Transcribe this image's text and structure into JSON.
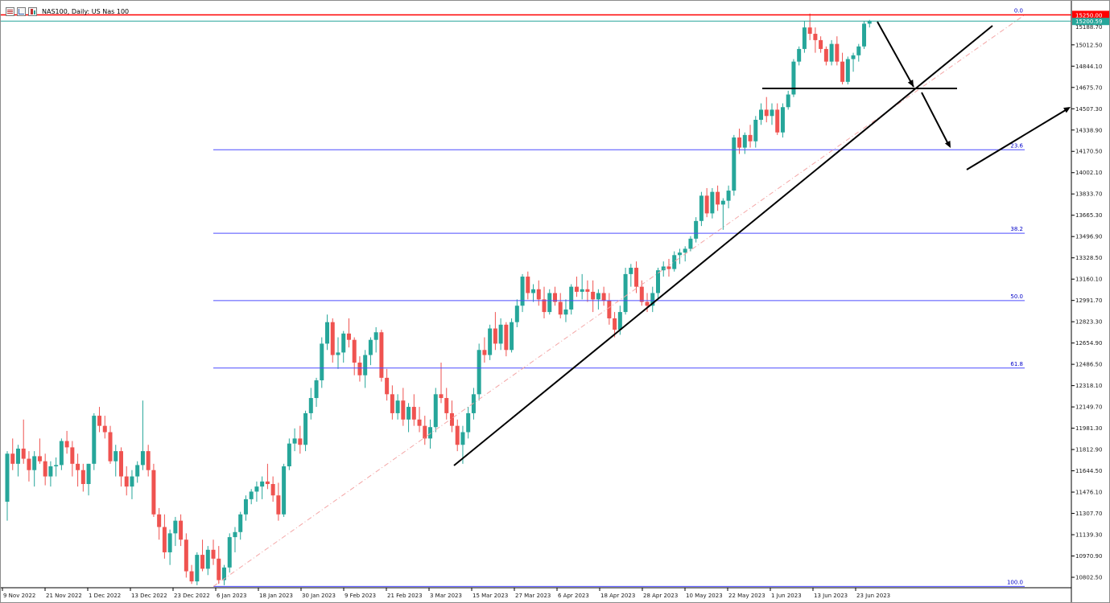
{
  "window": {
    "title": "NAS100, Daily:  US Nas 100",
    "icons": [
      "list-icon",
      "chart-icon",
      "candles-icon"
    ]
  },
  "colors": {
    "bull": "#26a69a",
    "bear": "#ef5350",
    "fib": "#4d4dff",
    "hline": "#ff0000",
    "ma": "#f4a6a6",
    "trendline": "#000000"
  },
  "chart_data": {
    "type": "candlestick",
    "symbol": "NAS100",
    "timeframe": "Daily",
    "description": "US Nas 100",
    "ylim": [
      10720,
      15310
    ],
    "y_ticks": [
      "15012.50",
      "14844.10",
      "14675.70",
      "14507.30",
      "14338.90",
      "14170.50",
      "14002.10",
      "13833.70",
      "13665.30",
      "13496.90",
      "13328.50",
      "13160.10",
      "12991.70",
      "12823.30",
      "12654.90",
      "12486.50",
      "12318.10",
      "12149.70",
      "11981.30",
      "11812.90",
      "11644.50",
      "11476.10",
      "11307.70",
      "11139.30",
      "10970.90",
      "10802.50"
    ],
    "x_ticks": [
      "9 Nov 2022",
      "21 Nov 2022",
      "1 Dec 2022",
      "13 Dec 2022",
      "23 Dec 2022",
      "6 Jan 2023",
      "18 Jan 2023",
      "30 Jan 2023",
      "9 Feb 2023",
      "21 Feb 2023",
      "3 Mar 2023",
      "15 Mar 2023",
      "27 Mar 2023",
      "6 Apr 2023",
      "18 Apr 2023",
      "28 Apr 2023",
      "10 May 2023",
      "22 May 2023",
      "1 Jun 2023",
      "13 Jun 2023",
      "23 Jun 2023"
    ],
    "horizontal_line": {
      "label": "15250.00",
      "value": 15250.0
    },
    "current_price": {
      "label": "15200.59",
      "value": 15200.59
    },
    "second_tag_label": "15188.70",
    "fibonacci": {
      "from": 10730,
      "to": 15250,
      "levels": [
        {
          "label": "0.0",
          "value": 15250
        },
        {
          "label": "23.6",
          "value": 14183
        },
        {
          "label": "38.2",
          "value": 13523
        },
        {
          "label": "50.0",
          "value": 12990
        },
        {
          "label": "61.8",
          "value": 12457
        },
        {
          "label": "100.0",
          "value": 10730
        }
      ]
    },
    "candles": [
      [
        11400,
        11800,
        11250,
        11780
      ],
      [
        11780,
        11900,
        11650,
        11700
      ],
      [
        11700,
        11850,
        11600,
        11820
      ],
      [
        11820,
        12050,
        11700,
        11740
      ],
      [
        11740,
        11800,
        11560,
        11650
      ],
      [
        11650,
        11800,
        11520,
        11760
      ],
      [
        11760,
        11900,
        11700,
        11720
      ],
      [
        11720,
        11780,
        11530,
        11600
      ],
      [
        11600,
        11720,
        11520,
        11680
      ],
      [
        11680,
        11750,
        11600,
        11690
      ],
      [
        11690,
        11900,
        11650,
        11880
      ],
      [
        11880,
        11960,
        11780,
        11830
      ],
      [
        11830,
        11880,
        11600,
        11700
      ],
      [
        11700,
        11780,
        11520,
        11650
      ],
      [
        11650,
        11700,
        11480,
        11540
      ],
      [
        11540,
        11700,
        11450,
        11700
      ],
      [
        11700,
        12100,
        11650,
        12080
      ],
      [
        12080,
        12150,
        11950,
        12000
      ],
      [
        12000,
        12080,
        11900,
        11950
      ],
      [
        11950,
        12000,
        11700,
        11720
      ],
      [
        11720,
        11850,
        11600,
        11800
      ],
      [
        11800,
        11830,
        11520,
        11600
      ],
      [
        11600,
        11680,
        11450,
        11520
      ],
      [
        11520,
        11650,
        11420,
        11600
      ],
      [
        11600,
        11720,
        11550,
        11690
      ],
      [
        11690,
        12200,
        11650,
        11800
      ],
      [
        11800,
        11850,
        11600,
        11650
      ],
      [
        11650,
        11700,
        11280,
        11300
      ],
      [
        11300,
        11350,
        11100,
        11200
      ],
      [
        11200,
        11300,
        10950,
        11000
      ],
      [
        11000,
        11180,
        10900,
        11150
      ],
      [
        11150,
        11280,
        11050,
        11250
      ],
      [
        11250,
        11300,
        11050,
        11100
      ],
      [
        11100,
        11150,
        10800,
        10850
      ],
      [
        10850,
        10900,
        10750,
        10770
      ],
      [
        10770,
        11000,
        10740,
        10980
      ],
      [
        10980,
        11100,
        10850,
        10870
      ],
      [
        10870,
        11050,
        10820,
        11020
      ],
      [
        11020,
        11100,
        10900,
        10950
      ],
      [
        10950,
        11050,
        10750,
        10780
      ],
      [
        10780,
        10900,
        10740,
        10880
      ],
      [
        10880,
        11150,
        10840,
        11120
      ],
      [
        11120,
        11200,
        11000,
        11160
      ],
      [
        11160,
        11320,
        11100,
        11300
      ],
      [
        11300,
        11450,
        11250,
        11420
      ],
      [
        11420,
        11500,
        11380,
        11480
      ],
      [
        11480,
        11560,
        11400,
        11520
      ],
      [
        11520,
        11600,
        11420,
        11560
      ],
      [
        11560,
        11700,
        11500,
        11540
      ],
      [
        11540,
        11600,
        11400,
        11450
      ],
      [
        11450,
        11550,
        11250,
        11300
      ],
      [
        11300,
        11700,
        11280,
        11680
      ],
      [
        11680,
        11900,
        11650,
        11860
      ],
      [
        11860,
        11980,
        11800,
        11900
      ],
      [
        11900,
        12000,
        11780,
        11850
      ],
      [
        11850,
        12120,
        11800,
        12100
      ],
      [
        12100,
        12300,
        12050,
        12220
      ],
      [
        12220,
        12380,
        12150,
        12360
      ],
      [
        12360,
        12700,
        12300,
        12650
      ],
      [
        12650,
        12880,
        12600,
        12820
      ],
      [
        12820,
        12850,
        12500,
        12560
      ],
      [
        12560,
        12700,
        12450,
        12580
      ],
      [
        12580,
        12750,
        12500,
        12730
      ],
      [
        12730,
        12850,
        12620,
        12680
      ],
      [
        12680,
        12700,
        12400,
        12500
      ],
      [
        12500,
        12550,
        12350,
        12400
      ],
      [
        12400,
        12600,
        12300,
        12560
      ],
      [
        12560,
        12700,
        12480,
        12680
      ],
      [
        12680,
        12780,
        12580,
        12740
      ],
      [
        12740,
        12760,
        12350,
        12380
      ],
      [
        12380,
        12450,
        12200,
        12250
      ],
      [
        12250,
        12320,
        12050,
        12100
      ],
      [
        12100,
        12250,
        12050,
        12200
      ],
      [
        12200,
        12300,
        12000,
        12050
      ],
      [
        12050,
        12180,
        11950,
        12150
      ],
      [
        12150,
        12250,
        12000,
        12050
      ],
      [
        12050,
        12150,
        11950,
        12000
      ],
      [
        12000,
        12080,
        11850,
        11900
      ],
      [
        11900,
        12050,
        11820,
        11990
      ],
      [
        11990,
        12300,
        11950,
        12250
      ],
      [
        12250,
        12500,
        12180,
        12220
      ],
      [
        12220,
        12300,
        12050,
        12100
      ],
      [
        12100,
        12200,
        11950,
        12000
      ],
      [
        12000,
        12050,
        11800,
        11850
      ],
      [
        11850,
        12000,
        11700,
        11950
      ],
      [
        11950,
        12150,
        11900,
        12100
      ],
      [
        12100,
        12300,
        12050,
        12250
      ],
      [
        12250,
        12650,
        12200,
        12600
      ],
      [
        12600,
        12700,
        12500,
        12560
      ],
      [
        12560,
        12800,
        12520,
        12770
      ],
      [
        12770,
        12900,
        12600,
        12650
      ],
      [
        12650,
        12850,
        12600,
        12800
      ],
      [
        12800,
        12820,
        12550,
        12600
      ],
      [
        12600,
        12850,
        12580,
        12820
      ],
      [
        12820,
        13000,
        12780,
        12950
      ],
      [
        12950,
        13200,
        12900,
        13180
      ],
      [
        13180,
        13220,
        13000,
        13050
      ],
      [
        13050,
        13120,
        12980,
        13080
      ],
      [
        13080,
        13150,
        12950,
        13000
      ],
      [
        13000,
        13100,
        12850,
        12900
      ],
      [
        12900,
        13080,
        12880,
        13050
      ],
      [
        13050,
        13100,
        12950,
        12980
      ],
      [
        12980,
        13050,
        12850,
        12880
      ],
      [
        12880,
        13000,
        12820,
        12920
      ],
      [
        12920,
        13120,
        12880,
        13100
      ],
      [
        13100,
        13180,
        13020,
        13060
      ],
      [
        13060,
        13200,
        13000,
        13080
      ],
      [
        13080,
        13150,
        12980,
        13060
      ],
      [
        13060,
        13150,
        12900,
        13000
      ],
      [
        13000,
        13080,
        12920,
        13050
      ],
      [
        13050,
        13100,
        12950,
        12990
      ],
      [
        12990,
        13050,
        12800,
        12850
      ],
      [
        12850,
        12900,
        12700,
        12760
      ],
      [
        12760,
        12950,
        12720,
        12900
      ],
      [
        12900,
        13250,
        12880,
        13200
      ],
      [
        13200,
        13280,
        13100,
        13250
      ],
      [
        13250,
        13300,
        13050,
        13100
      ],
      [
        13100,
        13150,
        12950,
        12980
      ],
      [
        12980,
        13050,
        12900,
        12950
      ],
      [
        12950,
        13100,
        12900,
        13050
      ],
      [
        13050,
        13250,
        13000,
        13230
      ],
      [
        13230,
        13300,
        13180,
        13260
      ],
      [
        13260,
        13320,
        13180,
        13240
      ],
      [
        13240,
        13380,
        13220,
        13350
      ],
      [
        13350,
        13400,
        13280,
        13370
      ],
      [
        13370,
        13420,
        13300,
        13400
      ],
      [
        13400,
        13500,
        13380,
        13480
      ],
      [
        13480,
        13650,
        13450,
        13620
      ],
      [
        13620,
        13850,
        13580,
        13820
      ],
      [
        13820,
        13880,
        13650,
        13680
      ],
      [
        13680,
        13880,
        13640,
        13850
      ],
      [
        13850,
        13900,
        13700,
        13750
      ],
      [
        13750,
        13800,
        13550,
        13780
      ],
      [
        13780,
        13900,
        13720,
        13860
      ],
      [
        13860,
        14300,
        13820,
        14280
      ],
      [
        14280,
        14350,
        14150,
        14200
      ],
      [
        14200,
        14320,
        14150,
        14300
      ],
      [
        14300,
        14380,
        14200,
        14250
      ],
      [
        14250,
        14450,
        14200,
        14420
      ],
      [
        14420,
        14550,
        14380,
        14500
      ],
      [
        14500,
        14600,
        14400,
        14450
      ],
      [
        14450,
        14550,
        14380,
        14500
      ],
      [
        14500,
        14550,
        14300,
        14320
      ],
      [
        14320,
        14550,
        14280,
        14520
      ],
      [
        14520,
        14650,
        14500,
        14620
      ],
      [
        14620,
        14900,
        14600,
        14880
      ],
      [
        14880,
        15000,
        14850,
        14980
      ],
      [
        14980,
        15200,
        14950,
        15150
      ],
      [
        15150,
        15260,
        15050,
        15100
      ],
      [
        15100,
        15150,
        14950,
        15050
      ],
      [
        15050,
        15080,
        14950,
        14980
      ],
      [
        14980,
        15000,
        14850,
        14880
      ],
      [
        14880,
        15050,
        14850,
        15020
      ],
      [
        15020,
        15080,
        14850,
        14880
      ],
      [
        14880,
        14950,
        14700,
        14720
      ],
      [
        14720,
        14920,
        14700,
        14900
      ],
      [
        14900,
        14950,
        14800,
        14930
      ],
      [
        14930,
        15020,
        14880,
        15000
      ],
      [
        15000,
        15200,
        14980,
        15180
      ],
      [
        15180,
        15210,
        15150,
        15200
      ]
    ]
  }
}
